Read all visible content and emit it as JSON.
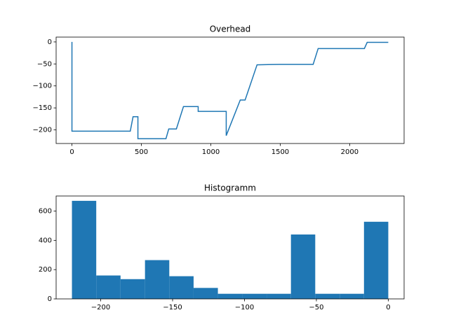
{
  "chart_data": [
    {
      "type": "line",
      "title": "Overhead",
      "color": "#1f77b4",
      "x": [
        0,
        0,
        420,
        440,
        475,
        475,
        677,
        697,
        752,
        803,
        909,
        909,
        1111,
        1111,
        1212,
        1247,
        1333,
        1495,
        1737,
        1773,
        2106,
        2126,
        2278
      ],
      "values": [
        0,
        -203,
        -203,
        -170,
        -170,
        -220,
        -220,
        -198,
        -198,
        -147,
        -147,
        -158,
        -158,
        -213,
        -132,
        -132,
        -52,
        -51,
        -51,
        -15,
        -15,
        -1,
        -1
      ],
      "xlim": [
        -114,
        2392
      ],
      "ylim": [
        -231,
        11
      ],
      "xticks": [
        0,
        500,
        1000,
        1500,
        2000
      ],
      "yticks": [
        0,
        {
          "value": -50,
          "label": "−50"
        },
        {
          "value": -100,
          "label": "−100"
        },
        {
          "value": -150,
          "label": "−150"
        },
        {
          "value": -200,
          "label": "−200"
        }
      ]
    },
    {
      "type": "histogram",
      "title": "Histogramm",
      "color": "#1f77b4",
      "bins": [
        -220,
        -203.1,
        -186.2,
        -169.2,
        -152.3,
        -135.4,
        -118.5,
        -101.5,
        -84.6,
        -67.7,
        -50.8,
        -33.8,
        -16.9,
        0
      ],
      "values": [
        670,
        160,
        135,
        265,
        155,
        75,
        35,
        35,
        35,
        440,
        35,
        35,
        527
      ],
      "xlim": [
        -231,
        11
      ],
      "ylim": [
        0,
        703
      ],
      "xticks": [
        {
          "value": -200,
          "label": "−200"
        },
        {
          "value": -150,
          "label": "−150"
        },
        {
          "value": -100,
          "label": "−100"
        },
        {
          "value": -50,
          "label": "−50"
        },
        0
      ],
      "yticks": [
        0,
        200,
        400,
        600
      ]
    }
  ]
}
